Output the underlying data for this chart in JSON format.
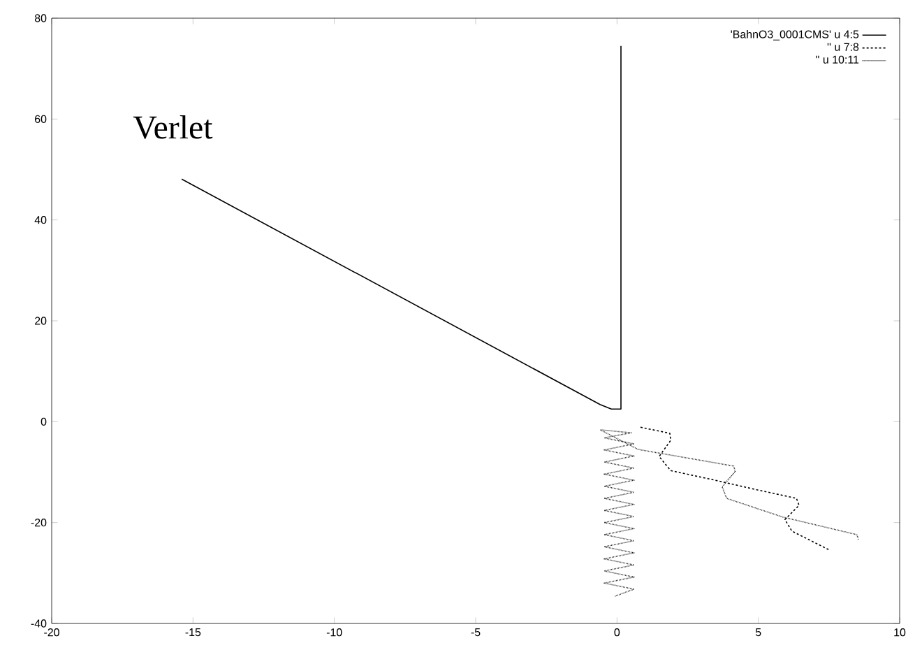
{
  "chart_data": {
    "type": "line",
    "xlim": [
      -20,
      10
    ],
    "ylim": [
      -40,
      80
    ],
    "xticks": [
      -20,
      -15,
      -10,
      -5,
      0,
      5,
      10
    ],
    "yticks": [
      -40,
      -20,
      0,
      20,
      40,
      60,
      80
    ],
    "grid": false,
    "legend": "top right",
    "marker": "none",
    "annotations": [
      "Verlet"
    ],
    "series": [
      {
        "name": "'BahnO3_0001CMS' u 4:5",
        "color": "#000000",
        "line_style": "solid",
        "x": [
          -15.4,
          -0.6,
          -0.2,
          0.14,
          0.14
        ],
        "values": [
          48.1,
          3.4,
          2.5,
          2.5,
          74.5
        ]
      },
      {
        "name": "'' u 7:8",
        "color": "#000000",
        "line_style": "dashed",
        "x": [
          0.83,
          1.87,
          1.9,
          1.49,
          1.9,
          3.39,
          4.87,
          6.35,
          6.44,
          5.94,
          6.19,
          7.5
        ],
        "values": [
          -1.1,
          -2.3,
          -3.7,
          -6.9,
          -9.7,
          -11.5,
          -13.4,
          -15.2,
          -16.6,
          -19.4,
          -21.7,
          -25.4
        ]
      },
      {
        "name": "'' u 10:11",
        "color": "#000000",
        "line_style": "dotted",
        "x": [
          -0.07,
          0.6,
          -0.45,
          0.6,
          -0.45,
          0.6,
          -0.45,
          0.6,
          -0.45,
          0.6,
          -0.45,
          0.6,
          -0.45,
          0.6,
          -0.45,
          0.6,
          -0.45,
          0.6,
          -0.45,
          0.6,
          -0.45,
          0.6,
          -0.45,
          0.6,
          -0.45,
          0.6,
          -0.45,
          0.5,
          -0.6,
          0.75,
          4.13,
          4.18,
          3.72,
          3.88,
          5.86,
          8.49,
          8.54
        ],
        "values": [
          -34.6,
          -33.2,
          -32.0,
          -30.8,
          -29.6,
          -28.4,
          -27.2,
          -26.0,
          -24.8,
          -23.6,
          -22.4,
          -21.2,
          -20.0,
          -18.8,
          -17.6,
          -16.4,
          -15.2,
          -14.0,
          -12.8,
          -11.6,
          -10.4,
          -9.2,
          -8.0,
          -6.8,
          -5.6,
          -4.4,
          -3.2,
          -2.2,
          -1.6,
          -5.5,
          -8.8,
          -9.9,
          -12.9,
          -15.2,
          -18.9,
          -22.4,
          -23.4
        ]
      }
    ]
  }
}
